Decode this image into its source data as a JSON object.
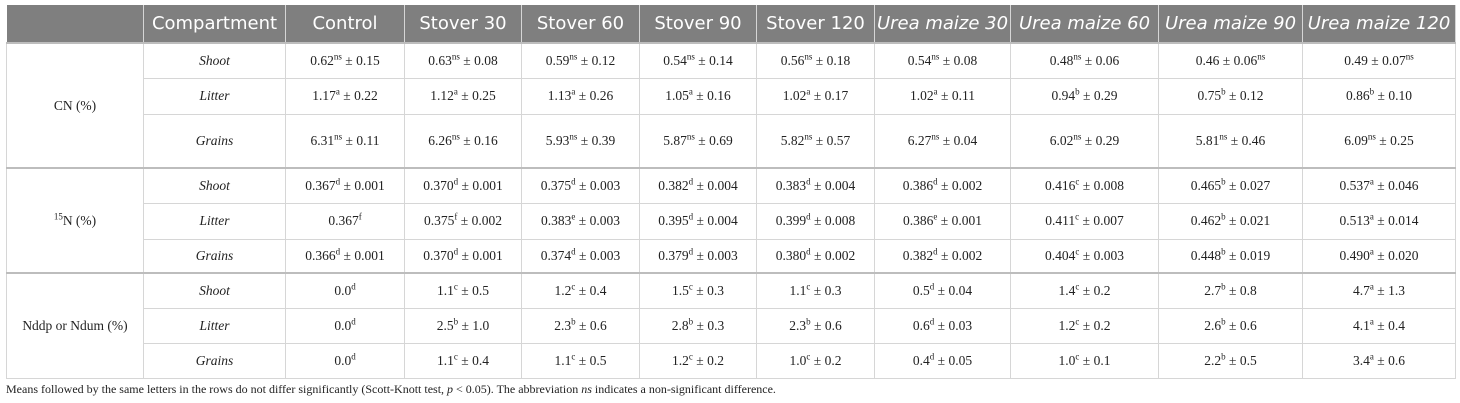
{
  "table": {
    "header": [
      "Compartment",
      "Control",
      "Stover 30",
      "Stover 60",
      "Stover 90",
      "Stover 120",
      "Urea maize 30",
      "Urea maize 60",
      "Urea maize 90",
      "Urea maize 120"
    ],
    "groups": [
      {
        "label": [
          "CN (%)"
        ],
        "rows": [
          {
            "compartment": "Shoot",
            "cells": [
              [
                "0.62",
                {
                  "sup": "ns"
                },
                " ± 0.15"
              ],
              [
                "0.63",
                {
                  "sup": "ns"
                },
                " ± 0.08"
              ],
              [
                "0.59",
                {
                  "sup": "ns"
                },
                " ± 0.12"
              ],
              [
                "0.54",
                {
                  "sup": "ns"
                },
                " ± 0.14"
              ],
              [
                "0.56",
                {
                  "sup": "ns"
                },
                " ± 0.18"
              ],
              [
                "0.54",
                {
                  "sup": "ns"
                },
                " ± 0.08"
              ],
              [
                "0.48",
                {
                  "sup": "ns"
                },
                " ± 0.06"
              ],
              [
                "0.46 ± 0.06",
                {
                  "sup": "ns"
                }
              ],
              [
                "0.49 ± 0.07",
                {
                  "sup": "ns"
                }
              ]
            ]
          },
          {
            "compartment": "Litter",
            "cells": [
              [
                "1.17",
                {
                  "sup": "a"
                },
                " ± 0.22"
              ],
              [
                "1.12",
                {
                  "sup": "a"
                },
                " ± 0.25"
              ],
              [
                "1.13",
                {
                  "sup": "a"
                },
                " ± 0.26"
              ],
              [
                "1.05",
                {
                  "sup": "a"
                },
                " ± 0.16"
              ],
              [
                "1.02",
                {
                  "sup": "a"
                },
                " ± 0.17"
              ],
              [
                "1.02",
                {
                  "sup": "a"
                },
                " ± 0.11"
              ],
              [
                "0.94",
                {
                  "sup": "b"
                },
                " ± 0.29"
              ],
              [
                "0.75",
                {
                  "sup": "b"
                },
                " ± 0.12"
              ],
              [
                "0.86",
                {
                  "sup": "b"
                },
                " ± 0.10"
              ]
            ]
          },
          {
            "compartment": "Grains",
            "cells": [
              [
                "6.31",
                {
                  "sup": "ns"
                },
                " ± 0.11"
              ],
              [
                "6.26",
                {
                  "sup": "ns"
                },
                " ± 0.16"
              ],
              [
                "5.93",
                {
                  "sup": "ns"
                },
                " ± 0.39"
              ],
              [
                "5.87",
                {
                  "sup": "ns"
                },
                " ± 0.69"
              ],
              [
                "5.82",
                {
                  "sup": "ns"
                },
                " ± 0.57"
              ],
              [
                "6.27",
                {
                  "sup": "ns"
                },
                " ± 0.04"
              ],
              [
                "6.02",
                {
                  "sup": "ns"
                },
                " ± 0.29"
              ],
              [
                "5.81",
                {
                  "sup": "ns"
                },
                " ± 0.46"
              ],
              [
                "6.09",
                {
                  "sup": "ns"
                },
                " ± 0.25"
              ]
            ]
          }
        ]
      },
      {
        "label": [
          {
            "sup": "15"
          },
          "N (%)"
        ],
        "rows": [
          {
            "compartment": "Shoot",
            "cells": [
              [
                "0.367",
                {
                  "sup": "d"
                },
                " ± 0.001"
              ],
              [
                "0.370",
                {
                  "sup": "d"
                },
                " ± 0.001"
              ],
              [
                "0.375",
                {
                  "sup": "d"
                },
                " ± 0.003"
              ],
              [
                "0.382",
                {
                  "sup": "d"
                },
                " ± 0.004"
              ],
              [
                "0.383",
                {
                  "sup": "d"
                },
                " ± 0.004"
              ],
              [
                "0.386",
                {
                  "sup": "d"
                },
                " ± 0.002"
              ],
              [
                "0.416",
                {
                  "sup": "c"
                },
                " ± 0.008"
              ],
              [
                "0.465",
                {
                  "sup": "b"
                },
                " ± 0.027"
              ],
              [
                "0.537",
                {
                  "sup": "a"
                },
                " ± 0.046"
              ]
            ]
          },
          {
            "compartment": "Litter",
            "cells": [
              [
                "0.367",
                {
                  "sup": "f"
                }
              ],
              [
                "0.375",
                {
                  "sup": "f"
                },
                " ± 0.002"
              ],
              [
                "0.383",
                {
                  "sup": "e"
                },
                " ± 0.003"
              ],
              [
                "0.395",
                {
                  "sup": "d"
                },
                " ± 0.004"
              ],
              [
                "0.399",
                {
                  "sup": "d"
                },
                " ± 0.008"
              ],
              [
                "0.386",
                {
                  "sup": "e"
                },
                " ± 0.001"
              ],
              [
                "0.411",
                {
                  "sup": "c"
                },
                " ± 0.007"
              ],
              [
                "0.462",
                {
                  "sup": "b"
                },
                " ± 0.021"
              ],
              [
                "0.513",
                {
                  "sup": "a"
                },
                " ± 0.014"
              ]
            ]
          },
          {
            "compartment": "Grains",
            "cells": [
              [
                "0.366",
                {
                  "sup": "d"
                },
                " ± 0.001"
              ],
              [
                "0.370",
                {
                  "sup": "d"
                },
                " ± 0.001"
              ],
              [
                "0.374",
                {
                  "sup": "d"
                },
                " ± 0.003"
              ],
              [
                "0.379",
                {
                  "sup": "d"
                },
                " ± 0.003"
              ],
              [
                "0.380",
                {
                  "sup": "d"
                },
                " ± 0.002"
              ],
              [
                "0.382",
                {
                  "sup": "d"
                },
                " ± 0.002"
              ],
              [
                "0.404",
                {
                  "sup": "c"
                },
                " ± 0.003"
              ],
              [
                "0.448",
                {
                  "sup": "b"
                },
                " ± 0.019"
              ],
              [
                "0.490",
                {
                  "sup": "a"
                },
                " ± 0.020"
              ]
            ]
          }
        ]
      },
      {
        "label": [
          "Nddp or Ndum (%)"
        ],
        "rows": [
          {
            "compartment": "Shoot",
            "cells": [
              [
                "0.0",
                {
                  "sup": "d"
                }
              ],
              [
                "1.1",
                {
                  "sup": "c"
                },
                " ± 0.5"
              ],
              [
                "1.2",
                {
                  "sup": "c"
                },
                " ± 0.4"
              ],
              [
                "1.5",
                {
                  "sup": "c"
                },
                " ± 0.3"
              ],
              [
                "1.1",
                {
                  "sup": "c"
                },
                " ± 0.3"
              ],
              [
                "0.5",
                {
                  "sup": "d"
                },
                " ± 0.04"
              ],
              [
                "1.4",
                {
                  "sup": "c"
                },
                " ± 0.2"
              ],
              [
                "2.7",
                {
                  "sup": "b"
                },
                " ± 0.8"
              ],
              [
                "4.7",
                {
                  "sup": "a"
                },
                " ± 1.3"
              ]
            ]
          },
          {
            "compartment": "Litter",
            "cells": [
              [
                "0.0",
                {
                  "sup": "d"
                }
              ],
              [
                "2.5",
                {
                  "sup": "b"
                },
                " ± 1.0"
              ],
              [
                "2.3",
                {
                  "sup": "b"
                },
                " ± 0.6"
              ],
              [
                "2.8",
                {
                  "sup": "b"
                },
                " ± 0.3"
              ],
              [
                "2.3",
                {
                  "sup": "b"
                },
                " ± 0.6"
              ],
              [
                "0.6",
                {
                  "sup": "d"
                },
                " ± 0.03"
              ],
              [
                "1.2",
                {
                  "sup": "c"
                },
                " ± 0.2"
              ],
              [
                "2.6",
                {
                  "sup": "b"
                },
                " ± 0.6"
              ],
              [
                "4.1",
                {
                  "sup": "a"
                },
                " ± 0.4"
              ]
            ]
          },
          {
            "compartment": "Grains",
            "cells": [
              [
                "0.0",
                {
                  "sup": "d"
                }
              ],
              [
                "1.1",
                {
                  "sup": "c"
                },
                " ± 0.4"
              ],
              [
                "1.1",
                {
                  "sup": "c"
                },
                " ± 0.5"
              ],
              [
                "1.2",
                {
                  "sup": "c"
                },
                " ± 0.2"
              ],
              [
                "1.0",
                {
                  "sup": "c"
                },
                " ± 0.2"
              ],
              [
                "0.4",
                {
                  "sup": "d"
                },
                " ± 0.05"
              ],
              [
                "1.0",
                {
                  "sup": "c"
                },
                " ± 0.1"
              ],
              [
                "2.2",
                {
                  "sup": "b"
                },
                " ± 0.5"
              ],
              [
                "3.4",
                {
                  "sup": "a"
                },
                " ± 0.6"
              ]
            ]
          }
        ]
      }
    ]
  },
  "footnote": [
    "Means followed by the same letters in the rows do not differ significantly (Scott-Knott test, ",
    {
      "i": "p"
    },
    " < 0.05). The abbreviation ",
    {
      "i": "ns"
    },
    " indicates a non-significant difference."
  ]
}
